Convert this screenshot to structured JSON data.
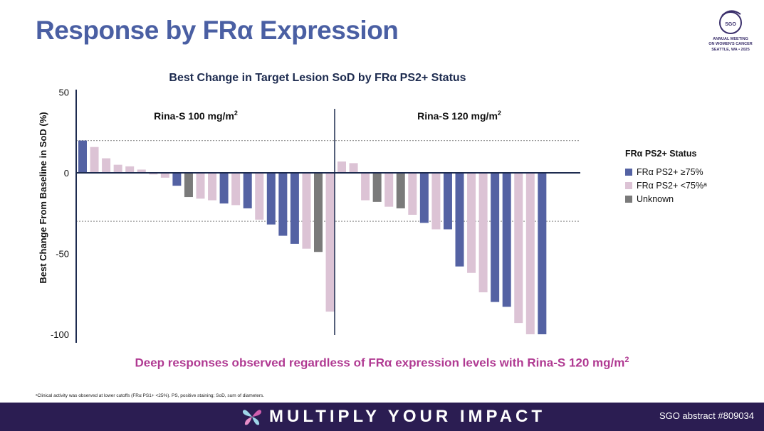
{
  "page": {
    "title": "Response by FRα Expression",
    "takeaway": "Deep responses observed regardless of FRα expression levels with Rina-S 120 mg/m",
    "takeaway_sup": "2",
    "footnote": "ᵃClinical activity was observed at lower cutoffs (FRα PS1+ <25%). PS, positive staining; SoD, sum of diameters.",
    "footer_slogan": "MULTIPLY YOUR IMPACT",
    "footer_abstract": "SGO abstract #809034"
  },
  "logo": {
    "mark": "SGO",
    "line1": "ANNUAL MEETING",
    "line2": "ON WOMEN'S CANCER",
    "line3": "SEATTLE, WA • 2025"
  },
  "colors": {
    "title": "#4a5fa3",
    "high": "#5462a3",
    "low": "#dcc3d5",
    "unknown": "#7a7a7a",
    "takeaway": "#b03a92",
    "footer": "#2b1d52"
  },
  "chart_data": {
    "type": "bar",
    "title": "Best Change in Target Lesion SoD by FRα PS2+ Status",
    "ylabel": "Best Change From Baseline in SoD (%)",
    "ylim": [
      -105,
      50
    ],
    "yticks": [
      "50",
      "0",
      "-50",
      "-100"
    ],
    "reference_lines": [
      20,
      -30
    ],
    "legend": {
      "title": "FRα PS2+ Status",
      "items": [
        {
          "key": "high",
          "label": "FRα PS2+ ≥75%"
        },
        {
          "key": "low",
          "label": "FRα PS2+ <75%ᵃ"
        },
        {
          "key": "unknown",
          "label": "Unknown"
        }
      ]
    },
    "groups": [
      {
        "label": "Rina-S 100 mg/m",
        "label_sup": "2",
        "values": [
          20,
          16,
          9,
          5,
          4,
          2,
          -1,
          -3,
          -8,
          -15,
          -16,
          -17,
          -19,
          -20,
          -22,
          -29,
          -32,
          -39,
          -44,
          -47,
          -49,
          -86
        ],
        "status": [
          "high",
          "low",
          "low",
          "low",
          "low",
          "low",
          "low",
          "low",
          "high",
          "unknown",
          "low",
          "low",
          "high",
          "low",
          "high",
          "low",
          "high",
          "high",
          "high",
          "low",
          "unknown",
          "low"
        ]
      },
      {
        "label": "Rina-S 120 mg/m",
        "label_sup": "2",
        "values": [
          7,
          6,
          -17,
          -18,
          -21,
          -22,
          -26,
          -31,
          -35,
          -35,
          -58,
          -62,
          -74,
          -80,
          -83,
          -93,
          -100,
          -100
        ],
        "status": [
          "low",
          "low",
          "low",
          "unknown",
          "low",
          "unknown",
          "low",
          "high",
          "low",
          "high",
          "high",
          "low",
          "low",
          "high",
          "high",
          "low",
          "low",
          "high"
        ]
      }
    ]
  }
}
